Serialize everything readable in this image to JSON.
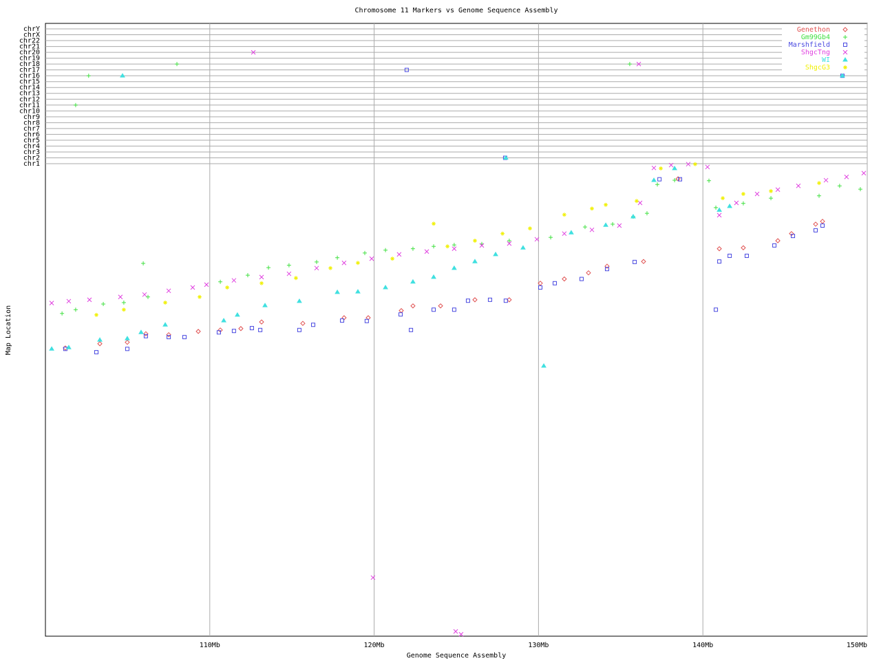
{
  "chart_data": [
    {
      "type": "scatter",
      "title": "Chromosome 11 Markers vs Genome Sequence Assembly",
      "x_label": "Genome Sequence Assembly",
      "y_label": "Map Location",
      "xlim": [
        100,
        150
      ],
      "xticks": [
        {
          "value": 110,
          "label": "110Mb"
        },
        {
          "value": 120,
          "label": "120Mb"
        },
        {
          "value": 130,
          "label": "130Mb"
        },
        {
          "value": 140,
          "label": "140Mb"
        },
        {
          "value": 150,
          "label": "150Mb"
        }
      ],
      "ylim": [
        100,
        0
      ],
      "grid": true,
      "legend": "top-right",
      "series": [
        {
          "name": "Genethon",
          "color": "#e05050",
          "marker": "diamond",
          "x": [
            101.21,
            103.31,
            104.98,
            106.11,
            107.5,
            109.3,
            110.64,
            111.89,
            113.15,
            115.66,
            118.17,
            119.64,
            121.65,
            122.36,
            124.04,
            126.13,
            128.22,
            130.11,
            131.57,
            133.04,
            134.17,
            136.39,
            138.49,
            141.0,
            142.46,
            144.56,
            145.39,
            146.86,
            147.28
          ],
          "values": [
            39.0,
            38.1,
            37.8,
            36.0,
            36.2,
            35.5,
            35.2,
            34.9,
            33.5,
            33.8,
            32.6,
            32.6,
            31.1,
            30.1,
            30.1,
            28.8,
            28.8,
            25.3,
            24.4,
            23.1,
            21.7,
            20.7,
            3.2,
            18.0,
            17.8,
            16.3,
            14.8,
            12.8,
            12.2
          ]
        },
        {
          "name": "Gm99Gb4",
          "color": "#40e040",
          "marker": "plus",
          "x": [
            101.01,
            101.84,
            103.52,
            104.77,
            105.95,
            106.24,
            110.64,
            112.31,
            113.57,
            114.82,
            116.5,
            117.76,
            119.43,
            120.69,
            122.36,
            123.62,
            124.87,
            126.55,
            128.22,
            130.74,
            132.83,
            134.51,
            135.76,
            136.6,
            137.23,
            138.28,
            140.37,
            140.79,
            142.46,
            144.14,
            147.07,
            148.32,
            149.58
          ],
          "values": [
            31.7,
            30.9,
            29.7,
            29.4,
            21.1,
            28.2,
            25.0,
            23.6,
            22.0,
            21.5,
            20.8,
            19.9,
            18.9,
            18.3,
            18.0,
            17.5,
            17.2,
            17.0,
            16.3,
            15.6,
            13.4,
            12.8,
            11.2,
            10.5,
            4.4,
            3.5,
            3.6,
            9.3,
            8.4,
            7.3,
            6.8,
            4.7,
            5.4
          ]
        },
        {
          "name": "Marshfield",
          "color": "#4848e0",
          "marker": "square",
          "x": [
            101.21,
            103.1,
            104.98,
            106.11,
            107.5,
            108.46,
            110.55,
            111.47,
            112.56,
            113.07,
            115.45,
            116.29,
            118.05,
            119.55,
            121.61,
            122.24,
            123.62,
            124.87,
            125.71,
            127.05,
            128.01,
            130.11,
            130.99,
            132.62,
            134.17,
            135.85,
            137.36,
            138.61,
            140.79,
            141.0,
            141.63,
            142.67,
            144.35,
            145.48,
            146.86,
            147.28
          ],
          "values": [
            39.2,
            39.9,
            39.2,
            36.5,
            36.7,
            36.7,
            35.7,
            35.4,
            34.8,
            35.2,
            35.2,
            34.1,
            33.2,
            33.3,
            31.9,
            35.2,
            30.9,
            30.9,
            29.0,
            28.8,
            29.0,
            26.2,
            25.3,
            24.4,
            22.3,
            20.8,
            3.3,
            3.3,
            30.9,
            20.7,
            19.5,
            19.5,
            17.3,
            15.3,
            14.1,
            13.1
          ]
        },
        {
          "name": "ShgcTng",
          "color": "#e040e0",
          "marker": "x",
          "x": [
            100.38,
            101.42,
            102.68,
            104.56,
            106.03,
            107.5,
            108.96,
            109.8,
            111.47,
            113.15,
            114.82,
            116.5,
            118.17,
            119.85,
            121.52,
            123.2,
            124.87,
            126.55,
            128.22,
            129.9,
            131.57,
            133.25,
            134.92,
            136.18,
            137.02,
            138.07,
            139.11,
            140.28,
            141.0,
            142.04,
            143.3,
            144.56,
            145.81,
            147.49,
            148.74,
            149.79,
            119.93,
            124.96,
            125.29
          ],
          "values": [
            29.5,
            29.1,
            28.8,
            28.2,
            27.7,
            26.9,
            26.2,
            25.6,
            24.7,
            24.0,
            23.3,
            22.1,
            21.0,
            20.1,
            19.2,
            18.6,
            18.0,
            17.3,
            16.9,
            16.0,
            14.8,
            14.0,
            13.1,
            8.3,
            0.9,
            0.3,
            0.1,
            0.7,
            10.9,
            8.3,
            6.4,
            5.5,
            4.7,
            3.5,
            2.8,
            2.0,
            87.6,
            99.0,
            99.6
          ]
        },
        {
          "name": "WI",
          "color": "#40e0e0",
          "marker": "triangle",
          "x": [
            100.38,
            101.42,
            103.31,
            104.98,
            105.82,
            107.29,
            110.85,
            111.68,
            113.36,
            115.45,
            117.76,
            119.01,
            120.69,
            122.36,
            123.62,
            124.87,
            126.13,
            127.39,
            129.06,
            130.32,
            131.99,
            134.09,
            135.76,
            137.02,
            138.28,
            141.0,
            141.63
          ],
          "values": [
            39.2,
            38.9,
            37.3,
            37.0,
            35.7,
            34.1,
            33.2,
            32.0,
            30.0,
            29.1,
            27.2,
            27.1,
            26.2,
            25.0,
            24.0,
            22.1,
            20.7,
            19.2,
            17.8,
            42.8,
            14.6,
            13.0,
            11.2,
            3.5,
            1.0,
            9.8,
            9.0
          ]
        },
        {
          "name": "ShgcG3",
          "color": "#f0f000",
          "marker": "star",
          "x": [
            103.1,
            104.77,
            107.29,
            109.38,
            111.06,
            113.15,
            115.24,
            117.34,
            119.01,
            121.11,
            123.62,
            124.46,
            126.13,
            127.81,
            129.48,
            131.57,
            133.25,
            134.09,
            135.97,
            137.44,
            139.53,
            141.21,
            142.46,
            144.14,
            147.07
          ],
          "values": [
            32.0,
            30.9,
            29.4,
            28.2,
            26.2,
            25.3,
            24.2,
            22.1,
            21.0,
            20.1,
            12.7,
            17.5,
            16.3,
            14.8,
            13.7,
            10.8,
            9.5,
            8.7,
            7.9,
            1.0,
            0.1,
            7.3,
            6.4,
            5.8,
            4.1
          ]
        }
      ]
    },
    {
      "type": "strip",
      "categories": [
        "chr1",
        "chr2",
        "chr3",
        "chr4",
        "chr5",
        "chr6",
        "chr7",
        "chr8",
        "chr9",
        "chr10",
        "chr11",
        "chr12",
        "chr13",
        "chr14",
        "chr15",
        "chr16",
        "chr17",
        "chr18",
        "chr19",
        "chr20",
        "chr21",
        "chr22",
        "chrX",
        "chrY"
      ],
      "series": [
        {
          "x": [],
          "values": []
        },
        {
          "x": [
            102.63,
            101.84,
            108.0,
            135.55
          ],
          "values": [
            "chr16",
            "chr11",
            "chr18",
            "chr18"
          ]
        },
        {
          "x": [
            121.98,
            127.97,
            148.49
          ],
          "values": [
            "chr17",
            "chr2",
            "chr16"
          ]
        },
        {
          "x": [
            112.65,
            136.1
          ],
          "values": [
            "chr20",
            "chr18"
          ]
        },
        {
          "x": [
            104.69,
            128.01,
            148.49
          ],
          "values": [
            "chr16",
            "chr2",
            "chr16"
          ]
        },
        {
          "x": [],
          "values": []
        }
      ]
    }
  ]
}
